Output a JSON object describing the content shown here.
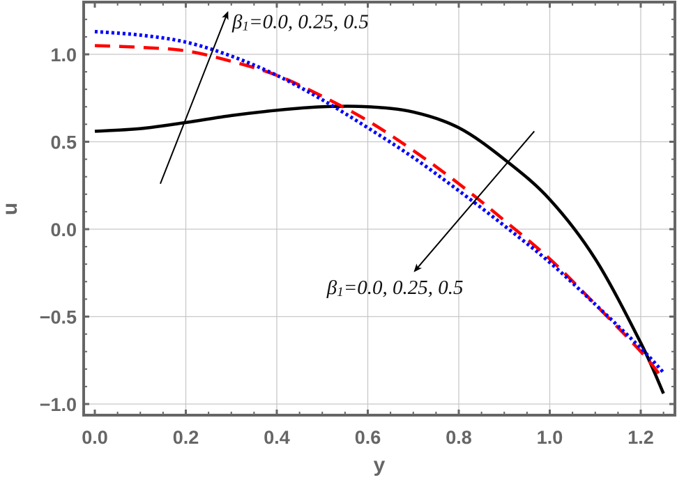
{
  "chart_data": {
    "type": "line",
    "title": "",
    "xlabel": "y",
    "ylabel": "u",
    "xlim": [
      -0.0245,
      1.275
    ],
    "ylim": [
      -1.06,
      1.3
    ],
    "grid": true,
    "x_ticks": [
      "0.0",
      "0.2",
      "0.4",
      "0.6",
      "0.8",
      "1.0",
      "1.2"
    ],
    "y_ticks": [
      "-1.0",
      "-0.5",
      "0.0",
      "0.5",
      "1.0"
    ],
    "x_tick_values": [
      0.0,
      0.2,
      0.4,
      0.6,
      0.8,
      1.0,
      1.2
    ],
    "y_tick_values": [
      -1.0,
      -0.5,
      0.0,
      0.5,
      1.0
    ],
    "legend": null,
    "series": [
      {
        "name": "beta1=0.0",
        "color": "#000000",
        "style": "solid",
        "x": [
          0.0,
          0.1,
          0.2,
          0.3,
          0.4,
          0.5,
          0.6,
          0.7,
          0.8,
          0.9,
          1.0,
          1.1,
          1.2,
          1.25
        ],
        "values": [
          0.56,
          0.575,
          0.61,
          0.65,
          0.68,
          0.7,
          0.7,
          0.67,
          0.58,
          0.4,
          0.17,
          -0.17,
          -0.65,
          -0.94
        ]
      },
      {
        "name": "beta1=0.25",
        "color": "#ff0000",
        "style": "dashed",
        "x": [
          0.0,
          0.1,
          0.2,
          0.3,
          0.4,
          0.5,
          0.6,
          0.7,
          0.8,
          0.9,
          1.0,
          1.1,
          1.2,
          1.25
        ],
        "values": [
          1.05,
          1.04,
          1.02,
          0.96,
          0.88,
          0.76,
          0.62,
          0.45,
          0.26,
          0.05,
          -0.17,
          -0.43,
          -0.7,
          -0.86
        ]
      },
      {
        "name": "beta1=0.5",
        "color": "#0000ff",
        "style": "dotted",
        "x": [
          0.0,
          0.1,
          0.2,
          0.3,
          0.4,
          0.5,
          0.6,
          0.7,
          0.8,
          0.9,
          1.0,
          1.1,
          1.2,
          1.25
        ],
        "values": [
          1.13,
          1.11,
          1.07,
          0.99,
          0.88,
          0.74,
          0.58,
          0.41,
          0.22,
          0.02,
          -0.19,
          -0.43,
          -0.68,
          -0.82
        ]
      }
    ],
    "annotations": [
      {
        "text_prefix": "β",
        "text_sub": "1",
        "text_suffix": "=0.0, 0.25, 0.5",
        "arrow_from": [
          0.144,
          0.26
        ],
        "arrow_to": [
          0.292,
          1.24
        ],
        "text_pos": [
          0.302,
          1.15
        ]
      },
      {
        "text_prefix": "β",
        "text_sub": "1",
        "text_suffix": "=0.0, 0.25, 0.5",
        "arrow_from": [
          0.966,
          0.56
        ],
        "arrow_to": [
          0.703,
          -0.24
        ],
        "text_pos": [
          0.51,
          -0.37
        ]
      }
    ]
  }
}
